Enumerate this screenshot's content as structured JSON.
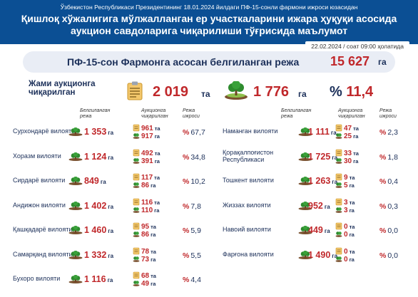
{
  "header": {
    "super": "Ўзбекистон Республикаси Президентининг 18.01.2024 йилдаги ПФ-15-сонли фармони ижроси юзасидан",
    "title_line1": "Қишлоқ хўжалигига мўлжалланган ер участкаларини ижара ҳуқуқи асосида",
    "title_line2": "аукцион савдоларига чиқарилиши тўғрисида маълумот",
    "date": "22.02.2024 / соат 09:00 ҳолатида"
  },
  "norm": {
    "label": "ПФ-15-сон Фармонга асосан белгиланган режа",
    "value": "15 627",
    "unit": "га"
  },
  "totals": {
    "label_line1": "Жами аукционга",
    "label_line2": "чиқарилган",
    "count": "2 019",
    "count_unit": "та",
    "area": "1 776",
    "area_unit": "га",
    "percent_sign": "%",
    "percent": "11,4"
  },
  "columns": {
    "planned": "Белгиланган\nрежа",
    "auction": "Аукционга\nчиқарилган",
    "share": "Режа\nижроси"
  },
  "units": {
    "ta": "та",
    "ga": "га",
    "pct": "%"
  },
  "colors": {
    "header_bg": "#0b4f94",
    "accent_red": "#c0282b",
    "navy": "#1b2f59",
    "norm_bg": "#e9edf5"
  },
  "icons": {
    "totals_doc": "clipboard-icon",
    "totals_tree": "tree-icon",
    "row_tree": "small-tree-icon",
    "row_doc": "document-icon"
  },
  "left_regions": [
    {
      "name": "Сурхондарё вилояти",
      "plan": "1 353",
      "count": "961",
      "area": "917",
      "pct": "67,7"
    },
    {
      "name": "Хоразм вилояти",
      "plan": "1 124",
      "count": "492",
      "area": "391",
      "pct": "34,8"
    },
    {
      "name": "Сирдарё вилояти",
      "plan": "849",
      "count": "117",
      "area": "86",
      "pct": "10,2"
    },
    {
      "name": "Андижон вилояти",
      "plan": "1 402",
      "count": "116",
      "area": "110",
      "pct": "7,8"
    },
    {
      "name": "Қашқадарё вилояти",
      "plan": "1 460",
      "count": "95",
      "area": "86",
      "pct": "5,9"
    },
    {
      "name": "Самарқанд вилояти",
      "plan": "1 332",
      "count": "78",
      "area": "73",
      "pct": "5,5"
    },
    {
      "name": "Бухоро вилояти",
      "plan": "1 116",
      "count": "68",
      "area": "49",
      "pct": "4,4"
    }
  ],
  "right_regions": [
    {
      "name": "Наманган вилояти",
      "plan": "1 111",
      "count": "47",
      "area": "25",
      "pct": "2,3"
    },
    {
      "name": "Қорақалпоғистон\nРеспубликаси",
      "plan": "1 725",
      "count": "33",
      "area": "30",
      "pct": "1,8"
    },
    {
      "name": "Тошкент вилояти",
      "plan": "1 263",
      "count": "9",
      "area": "5",
      "pct": "0,4"
    },
    {
      "name": "Жиззах вилояти",
      "plan": "952",
      "count": "3",
      "area": "3",
      "pct": "0,3"
    },
    {
      "name": "Навоий вилояти",
      "plan": "449",
      "count": "0",
      "area": "0",
      "pct": "0,0"
    },
    {
      "name": "Фарғона вилояти",
      "plan": "1 490",
      "count": "0",
      "area": "0",
      "pct": "0,0"
    }
  ]
}
